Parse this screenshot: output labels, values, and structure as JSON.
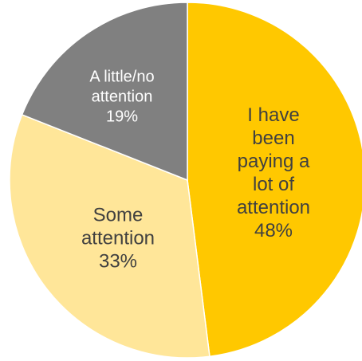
{
  "chart_data": {
    "type": "pie",
    "title": "",
    "slices": [
      {
        "label_lines": [
          "I have",
          "been",
          "paying a",
          "lot of",
          "attention"
        ],
        "value": 48,
        "value_label": "48%",
        "color": "#FFC800"
      },
      {
        "label_lines": [
          "Some",
          "attention"
        ],
        "value": 33,
        "value_label": "33%",
        "color": "#FFE699"
      },
      {
        "label_lines": [
          "A little/no",
          "attention"
        ],
        "value": 19,
        "value_label": "19%",
        "color": "#808080"
      }
    ],
    "start_angle_deg": 0,
    "direction": "clockwise",
    "legend": "none"
  }
}
